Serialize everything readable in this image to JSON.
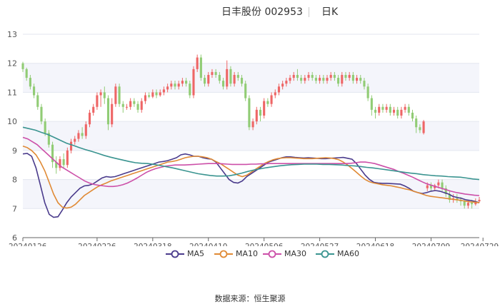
{
  "chart_data": {
    "type": "candlestick",
    "title": "日丰股份 002953",
    "subtitle": "日K",
    "source": "数据来源：恒生聚源",
    "ylim": [
      6,
      13
    ],
    "yticks": [
      6,
      7,
      8,
      9,
      10,
      11,
      12,
      13
    ],
    "xticks": [
      "20240126",
      "20240226",
      "20240318",
      "20240410",
      "20240506",
      "20240527",
      "20240618",
      "20240709",
      "20240729"
    ],
    "xtick_index": [
      0,
      20,
      35,
      50,
      65,
      80,
      95,
      110,
      124
    ],
    "grid": true,
    "up_color": "#ee6666",
    "down_color": "#91cc75",
    "legend": [
      {
        "name": "MA5",
        "color": "#4a3b8c"
      },
      {
        "name": "MA10",
        "color": "#e08a35"
      },
      {
        "name": "MA30",
        "color": "#cc4fa8"
      },
      {
        "name": "MA60",
        "color": "#3a9490"
      }
    ],
    "candles": [
      [
        12.0,
        11.8,
        12.05,
        11.7
      ],
      [
        11.8,
        11.5,
        11.85,
        11.4
      ],
      [
        11.5,
        11.2,
        11.6,
        11.1
      ],
      [
        11.2,
        10.9,
        11.3,
        10.8
      ],
      [
        10.9,
        10.5,
        11.0,
        10.4
      ],
      [
        10.5,
        10.0,
        10.6,
        9.9
      ],
      [
        10.0,
        9.6,
        10.1,
        9.5
      ],
      [
        9.6,
        9.2,
        9.7,
        9.1
      ],
      [
        9.2,
        8.6,
        9.3,
        8.4
      ],
      [
        8.6,
        8.4,
        8.8,
        8.2
      ],
      [
        8.4,
        8.7,
        8.8,
        8.3
      ],
      [
        8.7,
        8.5,
        8.9,
        8.4
      ],
      [
        8.5,
        9.0,
        9.1,
        8.4
      ],
      [
        9.0,
        9.3,
        9.4,
        8.9
      ],
      [
        9.3,
        9.4,
        9.5,
        9.2
      ],
      [
        9.4,
        9.6,
        9.7,
        9.3
      ],
      [
        9.6,
        9.5,
        9.8,
        9.4
      ],
      [
        9.5,
        9.9,
        10.0,
        9.4
      ],
      [
        9.9,
        10.3,
        10.4,
        9.8
      ],
      [
        10.3,
        10.5,
        10.6,
        10.2
      ],
      [
        10.5,
        10.9,
        11.0,
        10.4
      ],
      [
        10.9,
        11.0,
        11.1,
        10.5
      ],
      [
        11.0,
        10.8,
        11.2,
        10.6
      ],
      [
        10.8,
        9.9,
        10.9,
        9.7
      ],
      [
        9.9,
        10.6,
        10.8,
        9.8
      ],
      [
        10.6,
        11.2,
        11.3,
        10.5
      ],
      [
        11.2,
        10.6,
        11.3,
        10.5
      ],
      [
        10.6,
        10.5,
        10.7,
        10.3
      ],
      [
        10.5,
        10.5,
        10.6,
        10.4
      ],
      [
        10.5,
        10.7,
        10.8,
        10.4
      ],
      [
        10.7,
        10.6,
        10.8,
        10.5
      ],
      [
        10.6,
        10.4,
        10.7,
        10.3
      ],
      [
        10.4,
        10.7,
        10.8,
        10.3
      ],
      [
        10.7,
        10.9,
        11.0,
        10.6
      ],
      [
        10.9,
        10.85,
        11.0,
        10.8
      ],
      [
        10.85,
        11.0,
        11.1,
        10.8
      ],
      [
        11.0,
        10.9,
        11.1,
        10.8
      ],
      [
        10.9,
        11.0,
        11.1,
        10.85
      ],
      [
        11.0,
        11.1,
        11.2,
        10.9
      ],
      [
        11.1,
        11.2,
        11.3,
        11.0
      ],
      [
        11.2,
        11.3,
        11.4,
        11.1
      ],
      [
        11.3,
        11.2,
        11.4,
        11.1
      ],
      [
        11.2,
        11.3,
        11.4,
        11.1
      ],
      [
        11.3,
        11.4,
        11.5,
        11.2
      ],
      [
        11.4,
        11.3,
        11.5,
        11.2
      ],
      [
        11.3,
        10.9,
        11.4,
        10.8
      ],
      [
        10.9,
        11.8,
        11.9,
        10.8
      ],
      [
        11.8,
        12.2,
        12.3,
        11.7
      ],
      [
        12.2,
        11.5,
        12.3,
        11.4
      ],
      [
        11.5,
        11.3,
        11.6,
        11.2
      ],
      [
        11.3,
        11.6,
        11.7,
        11.2
      ],
      [
        11.6,
        11.7,
        11.8,
        11.5
      ],
      [
        11.7,
        11.6,
        11.8,
        11.5
      ],
      [
        11.6,
        11.4,
        11.7,
        11.3
      ],
      [
        11.4,
        11.2,
        11.5,
        11.1
      ],
      [
        11.2,
        11.8,
        12.1,
        11.1
      ],
      [
        11.8,
        11.3,
        11.9,
        11.2
      ],
      [
        11.3,
        11.6,
        11.7,
        11.2
      ],
      [
        11.6,
        11.5,
        11.7,
        11.4
      ],
      [
        11.5,
        11.3,
        11.6,
        11.2
      ],
      [
        11.3,
        10.8,
        11.4,
        10.7
      ],
      [
        10.8,
        9.8,
        10.9,
        9.7
      ],
      [
        9.8,
        10.0,
        10.1,
        9.7
      ],
      [
        10.0,
        10.4,
        10.5,
        9.9
      ],
      [
        10.4,
        10.2,
        10.5,
        10.0
      ],
      [
        10.2,
        10.7,
        10.8,
        10.1
      ],
      [
        10.7,
        10.6,
        10.8,
        10.5
      ],
      [
        10.6,
        10.9,
        11.0,
        10.5
      ],
      [
        10.9,
        11.0,
        11.1,
        10.8
      ],
      [
        11.0,
        11.2,
        11.3,
        10.9
      ],
      [
        11.2,
        11.3,
        11.4,
        11.1
      ],
      [
        11.3,
        11.4,
        11.5,
        11.2
      ],
      [
        11.4,
        11.5,
        11.6,
        11.3
      ],
      [
        11.5,
        11.6,
        11.7,
        11.4
      ],
      [
        11.6,
        11.5,
        11.8,
        11.4
      ],
      [
        11.5,
        11.4,
        11.6,
        11.3
      ],
      [
        11.4,
        11.5,
        11.6,
        11.3
      ],
      [
        11.5,
        11.6,
        11.7,
        11.4
      ],
      [
        11.6,
        11.5,
        11.7,
        11.4
      ],
      [
        11.5,
        11.4,
        11.6,
        11.3
      ],
      [
        11.4,
        11.5,
        11.6,
        11.3
      ],
      [
        11.5,
        11.4,
        11.6,
        11.3
      ],
      [
        11.4,
        11.5,
        11.6,
        11.3
      ],
      [
        11.5,
        11.6,
        11.7,
        11.4
      ],
      [
        11.6,
        11.5,
        11.7,
        11.4
      ],
      [
        11.5,
        11.3,
        11.6,
        11.2
      ],
      [
        11.3,
        11.6,
        11.7,
        11.2
      ],
      [
        11.6,
        11.5,
        11.7,
        11.4
      ],
      [
        11.5,
        11.6,
        11.7,
        11.4
      ],
      [
        11.6,
        11.4,
        11.7,
        11.3
      ],
      [
        11.4,
        11.5,
        11.6,
        11.3
      ],
      [
        11.5,
        11.4,
        11.6,
        11.3
      ],
      [
        11.4,
        11.2,
        11.5,
        11.1
      ],
      [
        11.2,
        10.8,
        11.3,
        10.7
      ],
      [
        10.8,
        10.4,
        10.9,
        10.2
      ],
      [
        10.4,
        10.3,
        10.5,
        10.1
      ],
      [
        10.3,
        10.5,
        10.6,
        10.2
      ],
      [
        10.5,
        10.4,
        10.6,
        10.3
      ],
      [
        10.4,
        10.5,
        10.6,
        10.3
      ],
      [
        10.5,
        10.3,
        10.6,
        10.2
      ],
      [
        10.3,
        10.4,
        10.5,
        10.2
      ],
      [
        10.4,
        10.2,
        10.5,
        10.1
      ],
      [
        10.2,
        10.4,
        10.5,
        10.1
      ],
      [
        10.4,
        10.5,
        10.6,
        10.3
      ],
      [
        10.5,
        10.3,
        10.6,
        10.2
      ],
      [
        10.3,
        10.1,
        10.4,
        10.0
      ],
      [
        10.1,
        9.8,
        10.2,
        9.6
      ],
      [
        9.8,
        9.7,
        9.9,
        9.6
      ],
      [
        9.6,
        10.0,
        10.05,
        9.55
      ],
      [
        7.7,
        7.8,
        7.9,
        7.6
      ],
      [
        7.8,
        7.7,
        7.9,
        7.6
      ],
      [
        7.7,
        7.8,
        7.85,
        7.6
      ],
      [
        7.8,
        7.9,
        8.0,
        7.7
      ],
      [
        7.9,
        7.7,
        8.0,
        7.6
      ],
      [
        7.7,
        7.5,
        7.8,
        7.4
      ],
      [
        7.5,
        7.3,
        7.6,
        7.2
      ],
      [
        7.3,
        7.35,
        7.5,
        7.2
      ],
      [
        7.35,
        7.3,
        7.5,
        7.2
      ],
      [
        7.3,
        7.25,
        7.4,
        7.1
      ],
      [
        7.25,
        7.1,
        7.3,
        7.0
      ],
      [
        7.1,
        7.2,
        7.3,
        7.0
      ],
      [
        7.2,
        7.15,
        7.3,
        7.0
      ],
      [
        7.15,
        7.25,
        7.35,
        7.1
      ],
      [
        7.25,
        7.3,
        7.4,
        7.2
      ]
    ],
    "ma5": [
      8.88,
      8.9,
      8.8,
      8.4,
      7.8,
      7.2,
      6.8,
      6.7,
      6.72,
      6.95,
      7.2,
      7.4,
      7.55,
      7.7,
      7.78,
      7.8,
      7.85,
      7.95,
      8.05,
      8.1,
      8.08,
      8.1,
      8.15,
      8.2,
      8.25,
      8.3,
      8.35,
      8.4,
      8.45,
      8.5,
      8.55,
      8.6,
      8.62,
      8.65,
      8.7,
      8.75,
      8.85,
      8.88,
      8.85,
      8.8,
      8.8,
      8.75,
      8.72,
      8.7,
      8.6,
      8.4,
      8.2,
      8.0,
      7.9,
      7.88,
      7.95,
      8.1,
      8.2,
      8.3,
      8.4,
      8.5,
      8.6,
      8.65,
      8.7,
      8.75,
      8.78,
      8.78,
      8.76,
      8.75,
      8.74,
      8.75,
      8.74,
      8.73,
      8.72,
      8.72,
      8.73,
      8.74,
      8.75,
      8.76,
      8.73,
      8.7,
      8.55,
      8.35,
      8.15,
      8.0,
      7.9,
      7.88,
      7.87,
      7.87,
      7.86,
      7.85,
      7.84,
      7.78,
      7.7,
      7.6,
      7.55,
      7.52,
      7.55,
      7.6,
      7.62,
      7.6,
      7.55,
      7.5,
      7.42,
      7.38,
      7.35,
      7.3,
      7.28,
      7.25,
      7.2
    ],
    "ma10": [
      9.15,
      9.1,
      9.0,
      8.85,
      8.6,
      8.3,
      7.9,
      7.5,
      7.2,
      7.05,
      7.02,
      7.05,
      7.15,
      7.3,
      7.45,
      7.55,
      7.65,
      7.75,
      7.82,
      7.88,
      7.95,
      8.0,
      8.05,
      8.1,
      8.15,
      8.2,
      8.25,
      8.3,
      8.35,
      8.4,
      8.45,
      8.5,
      8.55,
      8.6,
      8.62,
      8.65,
      8.7,
      8.75,
      8.78,
      8.8,
      8.8,
      8.78,
      8.75,
      8.7,
      8.62,
      8.55,
      8.45,
      8.35,
      8.25,
      8.15,
      8.1,
      8.15,
      8.25,
      8.35,
      8.45,
      8.55,
      8.62,
      8.68,
      8.72,
      8.74,
      8.75,
      8.75,
      8.74,
      8.73,
      8.72,
      8.72,
      8.72,
      8.73,
      8.74,
      8.75,
      8.74,
      8.72,
      8.68,
      8.6,
      8.5,
      8.38,
      8.25,
      8.12,
      8.0,
      7.92,
      7.88,
      7.85,
      7.82,
      7.8,
      7.78,
      7.75,
      7.72,
      7.68,
      7.65,
      7.6,
      7.55,
      7.5,
      7.45,
      7.42,
      7.4,
      7.38,
      7.36,
      7.34,
      7.32,
      7.3,
      7.28,
      7.25,
      7.23,
      7.22,
      7.2
    ],
    "ma30": [
      9.45,
      9.4,
      9.3,
      9.2,
      9.05,
      8.9,
      8.75,
      8.6,
      8.45,
      8.35,
      8.25,
      8.15,
      8.05,
      7.95,
      7.88,
      7.83,
      7.8,
      7.78,
      7.76,
      7.76,
      7.78,
      7.82,
      7.88,
      7.96,
      8.05,
      8.15,
      8.25,
      8.32,
      8.38,
      8.42,
      8.46,
      8.48,
      8.5,
      8.5,
      8.5,
      8.51,
      8.52,
      8.53,
      8.54,
      8.55,
      8.55,
      8.55,
      8.54,
      8.53,
      8.52,
      8.52,
      8.52,
      8.52,
      8.53,
      8.53,
      8.54,
      8.54,
      8.55,
      8.55,
      8.55,
      8.55,
      8.55,
      8.55,
      8.55,
      8.55,
      8.55,
      8.55,
      8.55,
      8.55,
      8.55,
      8.55,
      8.55,
      8.55,
      8.55,
      8.56,
      8.58,
      8.6,
      8.6,
      8.58,
      8.55,
      8.5,
      8.45,
      8.4,
      8.35,
      8.28,
      8.22,
      8.15,
      8.08,
      8.0,
      7.92,
      7.85,
      7.8,
      7.75,
      7.7,
      7.65,
      7.6,
      7.56,
      7.53,
      7.5,
      7.48,
      7.46,
      7.45
    ],
    "ma60": [
      9.8,
      9.75,
      9.7,
      9.62,
      9.55,
      9.45,
      9.35,
      9.25,
      9.18,
      9.1,
      9.03,
      8.97,
      8.9,
      8.83,
      8.77,
      8.72,
      8.67,
      8.62,
      8.58,
      8.56,
      8.55,
      8.52,
      8.48,
      8.44,
      8.4,
      8.35,
      8.3,
      8.25,
      8.2,
      8.17,
      8.14,
      8.12,
      8.12,
      8.13,
      8.17,
      8.22,
      8.28,
      8.33,
      8.37,
      8.41,
      8.44,
      8.47,
      8.49,
      8.51,
      8.52,
      8.53,
      8.53,
      8.53,
      8.52,
      8.52,
      8.51,
      8.5,
      8.48,
      8.47,
      8.45,
      8.42,
      8.4,
      8.37,
      8.34,
      8.31,
      8.28,
      8.25,
      8.22,
      8.2,
      8.17,
      8.15,
      8.13,
      8.12,
      8.1,
      8.09,
      8.08,
      8.05,
      8.02,
      8.0
    ]
  }
}
